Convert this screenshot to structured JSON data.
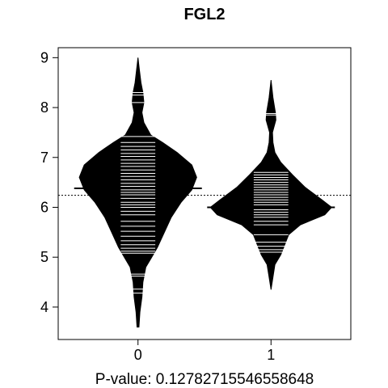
{
  "chart_data": {
    "type": "beanplot",
    "title": "FGL2",
    "xlabel": "P-value: 0.12782715546558648",
    "ylabel": "",
    "categories": [
      "0",
      "1"
    ],
    "ylim": [
      3.35,
      9.2
    ],
    "yticks": [
      4,
      5,
      6,
      7,
      8,
      9
    ],
    "overall_mean": 6.24,
    "grid": false,
    "series": [
      {
        "name": "0",
        "mean": 6.38,
        "range": [
          3.6,
          9.0
        ],
        "density": [
          [
            3.6,
            0.01
          ],
          [
            3.9,
            0.02
          ],
          [
            4.2,
            0.04
          ],
          [
            4.5,
            0.05
          ],
          [
            4.8,
            0.08
          ],
          [
            5.0,
            0.14
          ],
          [
            5.2,
            0.2
          ],
          [
            5.5,
            0.27
          ],
          [
            5.8,
            0.34
          ],
          [
            6.1,
            0.44
          ],
          [
            6.35,
            0.55
          ],
          [
            6.6,
            0.6
          ],
          [
            6.85,
            0.55
          ],
          [
            7.1,
            0.4
          ],
          [
            7.3,
            0.25
          ],
          [
            7.45,
            0.13
          ],
          [
            7.7,
            0.06
          ],
          [
            7.9,
            0.04
          ],
          [
            8.1,
            0.06
          ],
          [
            8.3,
            0.05
          ],
          [
            8.5,
            0.03
          ],
          [
            8.75,
            0.015
          ],
          [
            9.0,
            0.0
          ]
        ],
        "points": [
          4.28,
          4.36,
          4.62,
          4.66,
          5.08,
          5.12,
          5.18,
          5.25,
          5.33,
          5.42,
          5.52,
          5.62,
          5.72,
          5.85,
          5.92,
          6.0,
          6.05,
          6.1,
          6.18,
          6.25,
          6.3,
          6.35,
          6.42,
          6.48,
          6.55,
          6.62,
          6.68,
          6.75,
          6.82,
          6.88,
          6.95,
          7.02,
          7.08,
          7.15,
          7.22,
          7.3,
          7.42,
          8.1,
          8.25,
          8.3
        ]
      },
      {
        "name": "1",
        "mean": 6.0,
        "range": [
          4.35,
          8.55
        ],
        "density": [
          [
            4.35,
            0.0
          ],
          [
            4.6,
            0.02
          ],
          [
            4.85,
            0.04
          ],
          [
            5.05,
            0.1
          ],
          [
            5.25,
            0.14
          ],
          [
            5.45,
            0.18
          ],
          [
            5.65,
            0.3
          ],
          [
            5.85,
            0.55
          ],
          [
            6.0,
            0.62
          ],
          [
            6.15,
            0.52
          ],
          [
            6.4,
            0.35
          ],
          [
            6.65,
            0.22
          ],
          [
            6.9,
            0.1
          ],
          [
            7.1,
            0.04
          ],
          [
            7.3,
            0.02
          ],
          [
            7.5,
            0.015
          ],
          [
            7.75,
            0.05
          ],
          [
            7.9,
            0.045
          ],
          [
            8.2,
            0.02
          ],
          [
            8.55,
            0.0
          ]
        ],
        "points": [
          5.1,
          5.15,
          5.22,
          5.3,
          5.45,
          5.65,
          5.72,
          5.8,
          5.85,
          5.9,
          5.95,
          6.0,
          6.05,
          6.1,
          6.15,
          6.2,
          6.25,
          6.3,
          6.35,
          6.4,
          6.45,
          6.5,
          6.55,
          6.6,
          6.65,
          6.7,
          7.85,
          7.88
        ]
      }
    ]
  }
}
